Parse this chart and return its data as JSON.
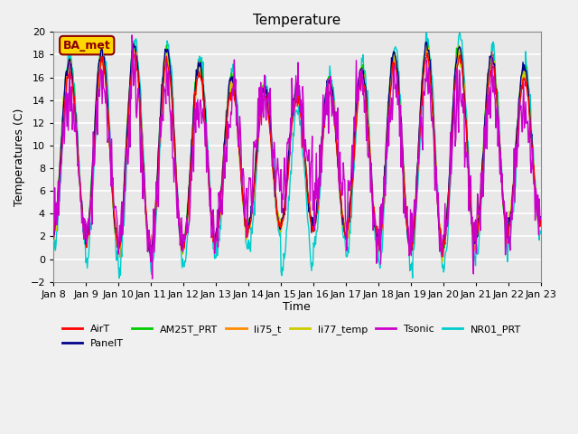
{
  "title": "Temperature",
  "xlabel": "Time",
  "ylabel": "Temperatures (C)",
  "ylim": [
    -2,
    20
  ],
  "yticks": [
    -2,
    0,
    2,
    4,
    6,
    8,
    10,
    12,
    14,
    16,
    18,
    20
  ],
  "xtick_labels": [
    "Jan 8",
    "Jan 9",
    "Jan 10",
    "Jan 11",
    "Jan 12",
    "Jan 13",
    "Jan 14",
    "Jan 15",
    "Jan 16",
    "Jan 17",
    "Jan 18",
    "Jan 19",
    "Jan 20",
    "Jan 21",
    "Jan 22",
    "Jan 23"
  ],
  "annotation_text": "BA_met",
  "annotation_fg": "#8B0000",
  "annotation_bg": "#FFD700",
  "series_colors": {
    "AirT": "#FF0000",
    "PanelT": "#00008B",
    "AM25T_PRT": "#00CC00",
    "li75_t": "#FF8C00",
    "li77_temp": "#CCCC00",
    "Tsonic": "#CC00CC",
    "NR01_PRT": "#00CCCC"
  },
  "plot_bg": "#E8E8E8",
  "grid_color": "#FFFFFF",
  "n_days": 15,
  "points_per_day": 48,
  "seed": 42
}
